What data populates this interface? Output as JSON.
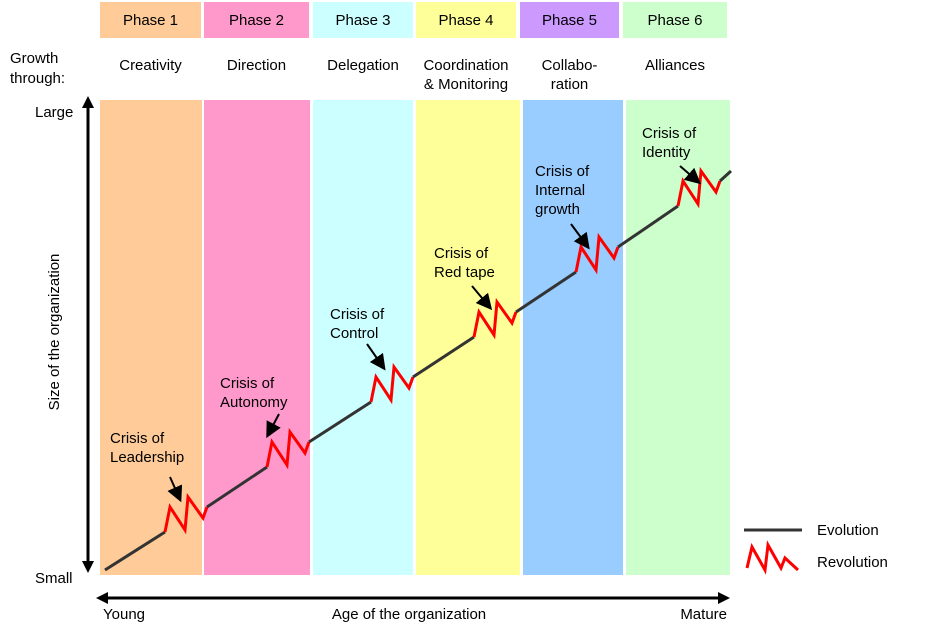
{
  "growth_through_label": [
    "Growth",
    "through:"
  ],
  "phases": [
    {
      "label": "Phase 1",
      "header_color": "#FFCC99",
      "band_color": "#FFCC99",
      "growth": [
        "Creativity"
      ],
      "crisis": [
        "Crisis of",
        "Leadership"
      ]
    },
    {
      "label": "Phase 2",
      "header_color": "#FF99CC",
      "band_color": "#FF99CC",
      "growth": [
        "Direction"
      ],
      "crisis": [
        "Crisis of",
        "Autonomy"
      ]
    },
    {
      "label": "Phase 3",
      "header_color": "#CCFFFF",
      "band_color": "#CCFFFF",
      "growth": [
        "Delegation"
      ],
      "crisis": [
        "Crisis of",
        "Control"
      ]
    },
    {
      "label": "Phase 4",
      "header_color": "#FFFF99",
      "band_color": "#FFFF99",
      "growth": [
        "Coordination",
        "& Monitoring"
      ],
      "crisis": [
        "Crisis of",
        "Red tape"
      ]
    },
    {
      "label": "Phase 5",
      "header_color": "#CC99FF",
      "band_color": "#99CCFF",
      "growth": [
        "Collabo-",
        "ration"
      ],
      "crisis": [
        "Crisis of",
        "Internal",
        "growth"
      ]
    },
    {
      "label": "Phase 6",
      "header_color": "#CCFFCC",
      "band_color": "#CCFFCC",
      "growth": [
        "Alliances"
      ],
      "crisis": [
        "Crisis of",
        "Identity"
      ]
    }
  ],
  "y_axis": {
    "label": "Size of the organization",
    "top": "Large",
    "bottom": "Small"
  },
  "x_axis": {
    "label": "Age of the organization",
    "left": "Young",
    "right": "Mature"
  },
  "legend": {
    "evolution": "Evolution",
    "revolution": "Revolution",
    "evolution_color": "#333333",
    "revolution_color": "#FF0000"
  }
}
